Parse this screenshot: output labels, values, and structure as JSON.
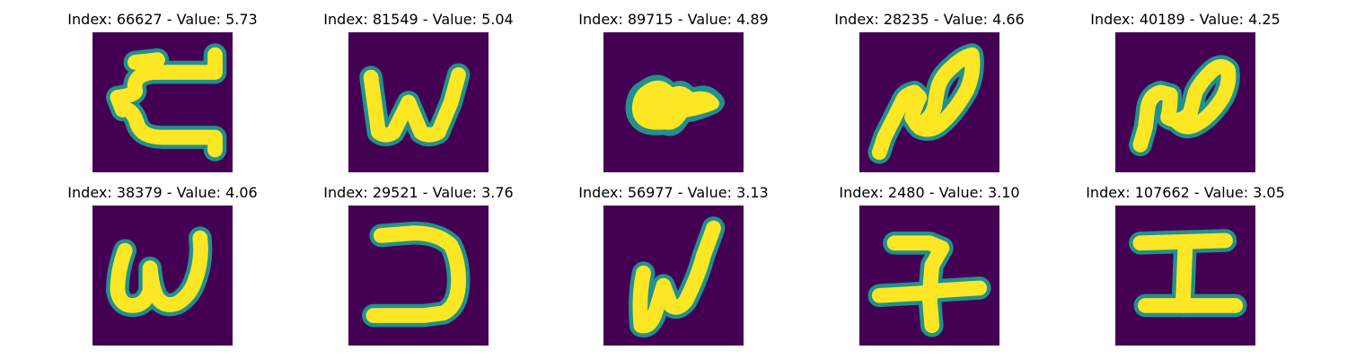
{
  "colors": {
    "background": "#440154",
    "mid": "#21918c",
    "foreground": "#fde725"
  },
  "panels": [
    {
      "title": "Index: 66627 - Value: 5.73",
      "index": 66627,
      "value": 5.73
    },
    {
      "title": "Index: 81549 - Value: 5.04",
      "index": 81549,
      "value": 5.04
    },
    {
      "title": "Index: 89715 - Value: 4.89",
      "index": 89715,
      "value": 4.89
    },
    {
      "title": "Index: 28235 - Value: 4.66",
      "index": 28235,
      "value": 4.66
    },
    {
      "title": "Index: 40189 - Value: 4.25",
      "index": 40189,
      "value": 4.25
    },
    {
      "title": "Index: 38379 - Value: 4.06",
      "index": 38379,
      "value": 4.06
    },
    {
      "title": "Index: 29521 - Value: 3.76",
      "index": 29521,
      "value": 3.76
    },
    {
      "title": "Index: 56977 - Value: 3.13",
      "index": 56977,
      "value": 3.13
    },
    {
      "title": "Index: 2480 - Value: 3.10",
      "index": 2480,
      "value": 3.1
    },
    {
      "title": "Index: 107662 - Value: 3.05",
      "index": 107662,
      "value": 3.05
    }
  ]
}
